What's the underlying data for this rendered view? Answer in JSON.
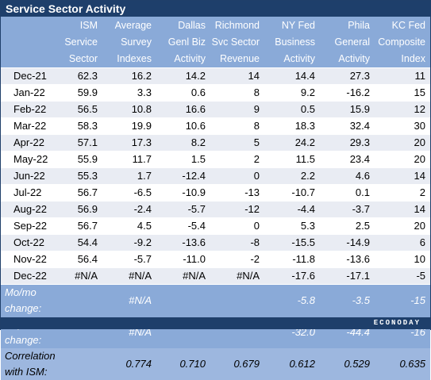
{
  "title": "Service Sector Activity",
  "columns": [
    "",
    "ISM Service Sector",
    "Average Survey Indexes",
    "Dallas Genl Biz Activity",
    "Richmond Svc Sector Revenue",
    "NY Fed Business Activity",
    "Phila General Activity",
    "KC Fed Composite Index"
  ],
  "header_lines": [
    [
      "",
      "",
      ""
    ],
    [
      "ISM",
      "Service",
      "Sector"
    ],
    [
      "Average",
      "Survey",
      "Indexes"
    ],
    [
      "Dallas",
      "Genl Biz",
      "Activity"
    ],
    [
      "Richmond",
      "Svc Sector",
      "Revenue"
    ],
    [
      "NY Fed",
      "Business",
      "Activity"
    ],
    [
      "Phila",
      "General",
      "Activity"
    ],
    [
      "KC Fed",
      "Composite",
      "Index"
    ]
  ],
  "rows": [
    [
      "Dec-21",
      "62.3",
      "16.2",
      "14.2",
      "14",
      "14.4",
      "27.3",
      "11"
    ],
    [
      "Jan-22",
      "59.9",
      "3.3",
      "0.6",
      "8",
      "9.2",
      "-16.2",
      "15"
    ],
    [
      "Feb-22",
      "56.5",
      "10.8",
      "16.6",
      "9",
      "0.5",
      "15.9",
      "12"
    ],
    [
      "Mar-22",
      "58.3",
      "19.9",
      "10.6",
      "8",
      "18.3",
      "32.4",
      "30"
    ],
    [
      "Apr-22",
      "57.1",
      "17.3",
      "8.2",
      "5",
      "24.2",
      "29.3",
      "20"
    ],
    [
      "May-22",
      "55.9",
      "11.7",
      "1.5",
      "2",
      "11.5",
      "23.4",
      "20"
    ],
    [
      "Jun-22",
      "55.3",
      "1.7",
      "-12.4",
      "0",
      "2.2",
      "4.6",
      "14"
    ],
    [
      "Jul-22",
      "56.7",
      "-6.5",
      "-10.9",
      "-13",
      "-10.7",
      "0.1",
      "2"
    ],
    [
      "Aug-22",
      "56.9",
      "-2.4",
      "-5.7",
      "-12",
      "-4.4",
      "-3.7",
      "14"
    ],
    [
      "Sep-22",
      "56.7",
      "4.5",
      "-5.4",
      "0",
      "5.3",
      "2.5",
      "20"
    ],
    [
      "Oct-22",
      "54.4",
      "-9.2",
      "-13.6",
      "-8",
      "-15.5",
      "-14.9",
      "6"
    ],
    [
      "Nov-22",
      "56.4",
      "-5.7",
      "-11.0",
      "-2",
      "-11.8",
      "-13.6",
      "10"
    ],
    [
      "Dec-22",
      "#N/A",
      "#N/A",
      "#N/A",
      "#N/A",
      "-17.6",
      "-17.1",
      "-5"
    ]
  ],
  "summary": [
    {
      "label": "Mo/mo change:",
      "values": [
        "",
        "#N/A",
        "",
        "",
        "-5.8",
        "-3.5",
        "-15"
      ]
    },
    {
      "label": "Yr/yr change:",
      "values": [
        "",
        "#N/A",
        "",
        "",
        "-32.0",
        "-44.4",
        "-16"
      ]
    },
    {
      "label": "Correlation with ISM:",
      "values": [
        "",
        "0.774",
        "0.710",
        "0.679",
        "0.612",
        "0.529",
        "0.635"
      ]
    }
  ],
  "brand": "ECONODAY",
  "colors": {
    "title_bar": "#1e3f6b",
    "header_bg": "#8aaad8",
    "alt_row": "#e9ecf3",
    "footer_bar": "#1e3f6b"
  }
}
